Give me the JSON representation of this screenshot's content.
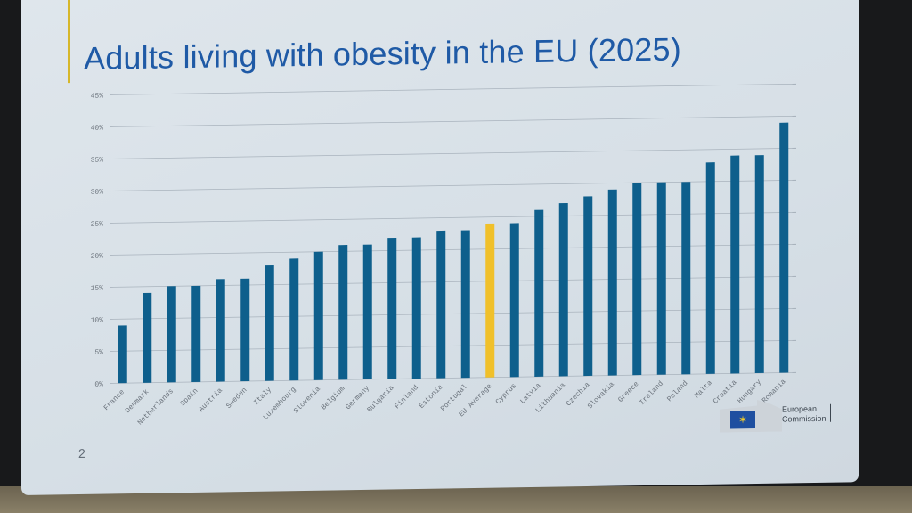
{
  "slide": {
    "title": "Adults living with obesity in the EU (2025)",
    "page_number": "2",
    "logo": {
      "line1": "European",
      "line2": "Commission",
      "flag_icon": "eu-flag"
    }
  },
  "chart_data": {
    "type": "bar",
    "title": "Adults living with obesity in the EU (2025)",
    "xlabel": "",
    "ylabel": "",
    "ylim": [
      0,
      45
    ],
    "yticks": [
      "0%",
      "5%",
      "10%",
      "15%",
      "20%",
      "25%",
      "30%",
      "35%",
      "40%",
      "45%"
    ],
    "grid": true,
    "legend": "none",
    "colors": {
      "default": "#0e5f8c",
      "highlight": "#f0c02a"
    },
    "highlight_category": "EU Average",
    "categories": [
      "France",
      "Denmark",
      "Netherlands",
      "Spain",
      "Austria",
      "Sweden",
      "Italy",
      "Luxembourg",
      "Slovenia",
      "Belgium",
      "Germany",
      "Bulgaria",
      "Finland",
      "Estonia",
      "Portugal",
      "EU Average",
      "Cyprus",
      "Latvia",
      "Lithuania",
      "Czechia",
      "Slovakia",
      "Greece",
      "Ireland",
      "Poland",
      "Malta",
      "Croatia",
      "Hungary",
      "Romania"
    ],
    "values": [
      9,
      14,
      15,
      15,
      16,
      16,
      18,
      19,
      20,
      21,
      21,
      22,
      22,
      23,
      23,
      24,
      24,
      26,
      27,
      28,
      29,
      30,
      30,
      30,
      33,
      34,
      34,
      39
    ]
  }
}
